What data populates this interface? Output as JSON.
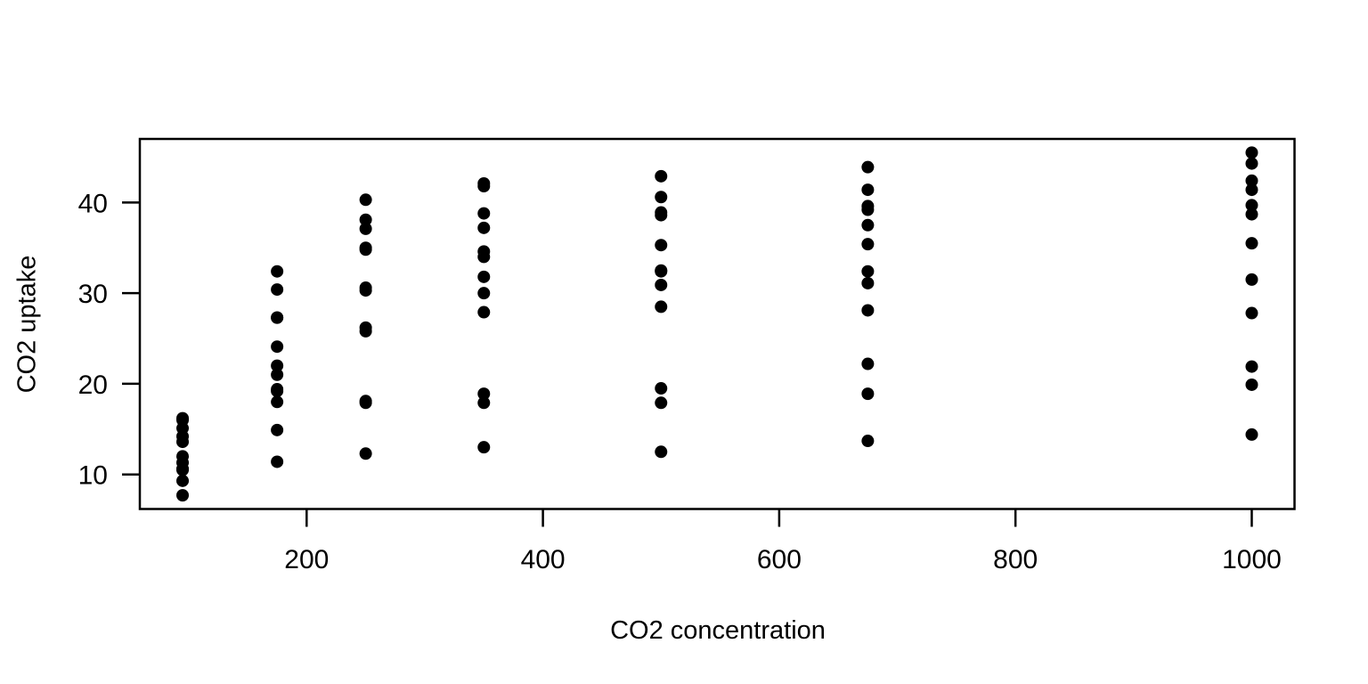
{
  "page": {
    "background_color": "#ffffff",
    "foreground_color": "#000000"
  },
  "chart_data": {
    "type": "scatter",
    "title": "",
    "xlabel": "CO2 concentration",
    "ylabel": "CO2 uptake",
    "x_ticks": [
      200,
      400,
      600,
      800,
      1000
    ],
    "y_ticks": [
      10,
      20,
      30,
      40
    ],
    "xlim": [
      58.8,
      1036.2
    ],
    "ylim": [
      6.19,
      47.01
    ],
    "grid": "off",
    "legend": "none",
    "marker": {
      "shape": "filled-circle",
      "color": "#000000",
      "radius_px": 7
    },
    "frame_color": "#000000",
    "groups": [
      {
        "conc": 95,
        "uptake": [
          16.0,
          13.6,
          16.2,
          14.2,
          9.3,
          15.1,
          10.6,
          12.0,
          11.3,
          10.5,
          7.7,
          10.6
        ]
      },
      {
        "conc": 175,
        "uptake": [
          30.4,
          27.3,
          32.4,
          24.1,
          27.3,
          21.0,
          19.2,
          22.0,
          19.4,
          14.9,
          11.4,
          18.0
        ]
      },
      {
        "conc": 250,
        "uptake": [
          34.8,
          37.1,
          40.3,
          30.3,
          35.0,
          38.1,
          26.2,
          30.6,
          25.8,
          18.1,
          12.3,
          17.9
        ]
      },
      {
        "conc": 350,
        "uptake": [
          37.2,
          41.8,
          42.1,
          34.6,
          38.8,
          34.0,
          30.0,
          31.8,
          27.9,
          18.9,
          13.0,
          17.9
        ]
      },
      {
        "conc": 500,
        "uptake": [
          35.3,
          40.6,
          42.9,
          32.5,
          38.6,
          38.9,
          30.9,
          32.4,
          28.5,
          19.5,
          12.5,
          17.9
        ]
      },
      {
        "conc": 675,
        "uptake": [
          39.2,
          41.4,
          43.9,
          35.4,
          37.5,
          39.6,
          32.4,
          31.1,
          28.1,
          22.2,
          13.7,
          18.9
        ]
      },
      {
        "conc": 1000,
        "uptake": [
          39.7,
          44.3,
          45.5,
          38.7,
          42.4,
          41.4,
          35.5,
          31.5,
          27.8,
          21.9,
          14.4,
          19.9
        ]
      }
    ]
  }
}
